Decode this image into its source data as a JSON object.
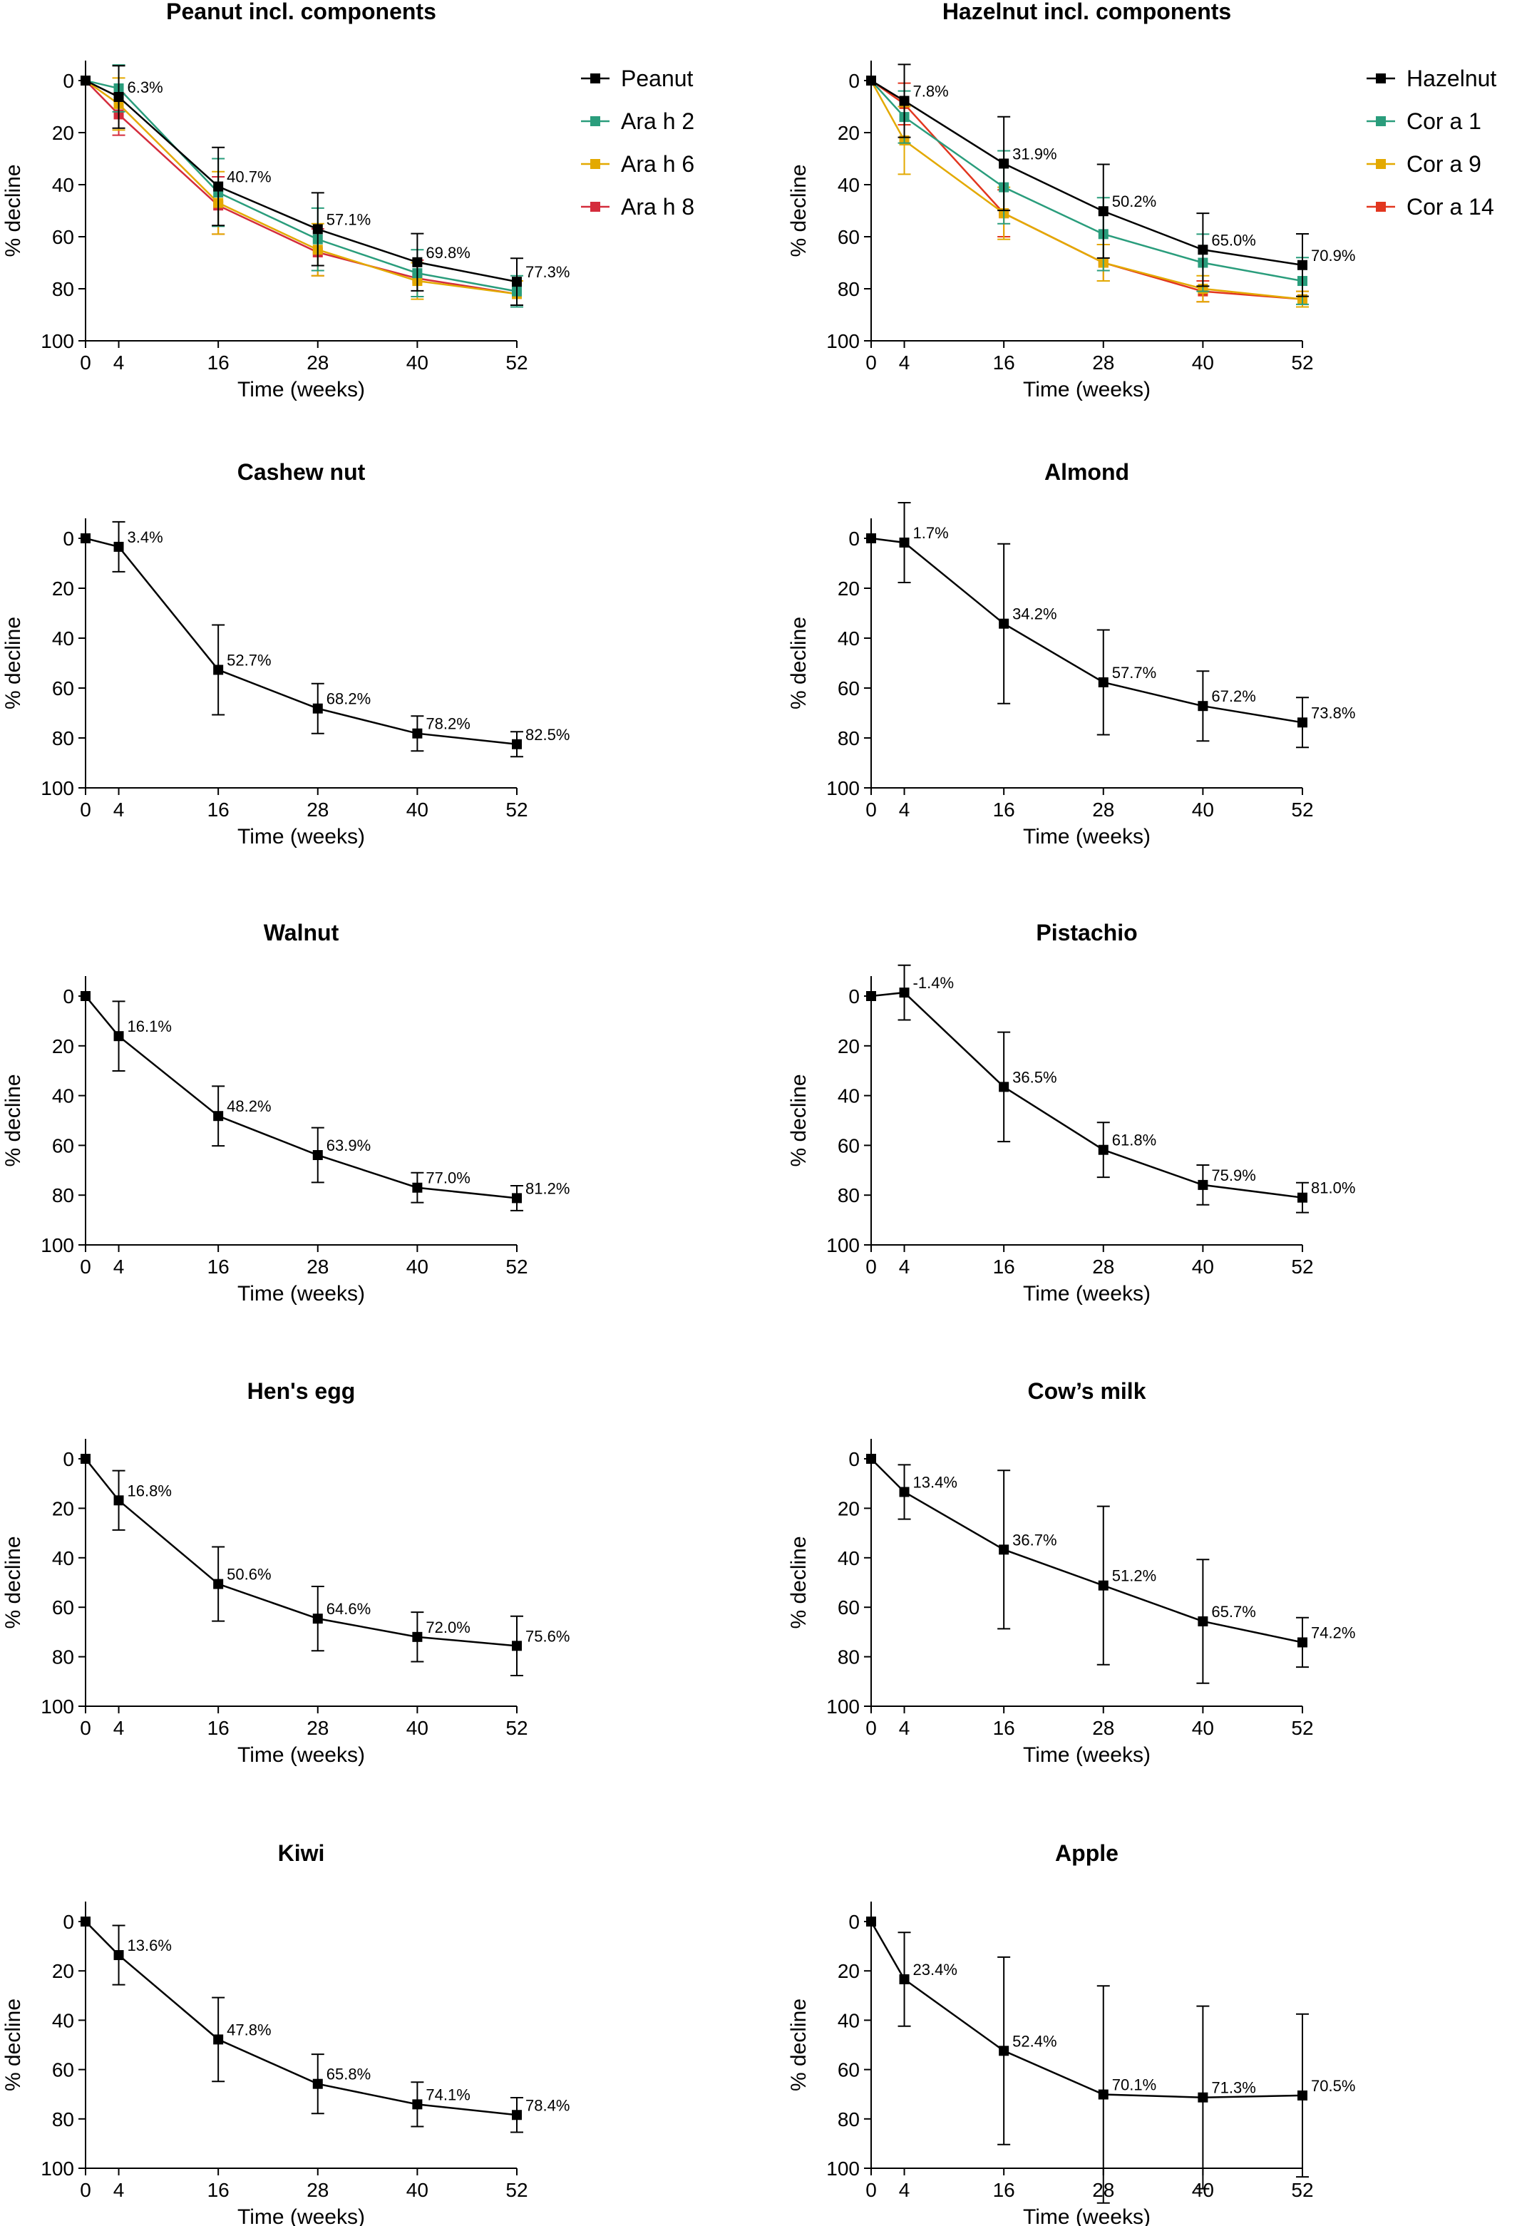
{
  "chart_data": [
    {
      "type": "line",
      "title": "Peanut incl. components",
      "xlabel": "Time (weeks)",
      "ylabel": "% decline",
      "x": [
        0,
        4,
        16,
        28,
        40,
        52
      ],
      "xlim": [
        0,
        52
      ],
      "ylim": [
        0,
        100
      ],
      "y_inverted": true,
      "legend": "right",
      "series": [
        {
          "name": "Peanut",
          "color": "#000000",
          "values": [
            0,
            6.3,
            40.7,
            57.1,
            69.8,
            77.3
          ],
          "err": [
            0,
            12,
            15,
            14,
            11,
            9
          ],
          "labels": [
            "",
            "6.3%",
            "40.7%",
            "57.1%",
            "69.8%",
            "77.3%"
          ]
        },
        {
          "name": "Ara h 2",
          "color": "#2a9d7c",
          "values": [
            0,
            3,
            43,
            61,
            74,
            81
          ],
          "err": [
            0,
            9,
            13,
            12,
            9,
            6
          ],
          "labels": []
        },
        {
          "name": "Ara h 6",
          "color": "#e3a900",
          "values": [
            0,
            9,
            47,
            65,
            77,
            82
          ],
          "err": [
            0,
            10,
            12,
            10,
            7,
            5
          ],
          "labels": []
        },
        {
          "name": "Ara h 8",
          "color": "#d42c3c",
          "values": [
            0,
            13,
            48,
            66,
            76,
            82
          ],
          "err": [
            0,
            8,
            11,
            9,
            7,
            5
          ],
          "labels": []
        }
      ]
    },
    {
      "type": "line",
      "title": "Hazelnut incl. components",
      "xlabel": "Time (weeks)",
      "ylabel": "% decline",
      "x": [
        0,
        4,
        16,
        28,
        40,
        52
      ],
      "xlim": [
        0,
        52
      ],
      "ylim": [
        0,
        100
      ],
      "y_inverted": true,
      "legend": "right",
      "series": [
        {
          "name": "Hazelnut",
          "color": "#000000",
          "values": [
            0,
            7.8,
            31.9,
            50.2,
            65.0,
            70.9
          ],
          "err": [
            0,
            14,
            18,
            18,
            14,
            12
          ],
          "labels": [
            "",
            "7.8%",
            "31.9%",
            "50.2%",
            "65.0%",
            "70.9%"
          ]
        },
        {
          "name": "Cor a 1",
          "color": "#2a9d7c",
          "values": [
            0,
            14,
            41,
            59,
            70,
            77
          ],
          "err": [
            0,
            10,
            14,
            14,
            11,
            9
          ],
          "labels": []
        },
        {
          "name": "Cor a 9",
          "color": "#e3a900",
          "values": [
            0,
            23,
            51,
            70,
            80,
            84
          ],
          "err": [
            0,
            13,
            10,
            7,
            5,
            3
          ],
          "labels": []
        },
        {
          "name": "Cor a 14",
          "color": "#e2361f",
          "values": [
            0,
            9,
            51,
            70,
            81,
            84
          ],
          "err": [
            0,
            8,
            9,
            7,
            4,
            3
          ],
          "labels": []
        }
      ]
    },
    {
      "type": "line",
      "title": "Cashew nut",
      "xlabel": "Time (weeks)",
      "ylabel": "% decline",
      "x": [
        0,
        4,
        16,
        28,
        40,
        52
      ],
      "xlim": [
        0,
        52
      ],
      "ylim": [
        0,
        100
      ],
      "y_inverted": true,
      "series": [
        {
          "color": "#000000",
          "values": [
            0,
            3.4,
            52.7,
            68.2,
            78.2,
            82.5
          ],
          "err": [
            0,
            10,
            18,
            10,
            7,
            5
          ],
          "labels": [
            "",
            "3.4%",
            "52.7%",
            "68.2%",
            "78.2%",
            "82.5%"
          ]
        }
      ]
    },
    {
      "type": "line",
      "title": "Almond",
      "xlabel": "Time (weeks)",
      "ylabel": "% decline",
      "x": [
        0,
        4,
        16,
        28,
        40,
        52
      ],
      "xlim": [
        0,
        52
      ],
      "ylim": [
        0,
        100
      ],
      "y_inverted": true,
      "series": [
        {
          "color": "#000000",
          "values": [
            0,
            1.7,
            34.2,
            57.7,
            67.2,
            73.8
          ],
          "err": [
            0,
            16,
            32,
            21,
            14,
            10
          ],
          "labels": [
            "",
            "1.7%",
            "34.2%",
            "57.7%",
            "67.2%",
            "73.8%"
          ]
        }
      ]
    },
    {
      "type": "line",
      "title": "Walnut",
      "xlabel": "Time (weeks)",
      "ylabel": "% decline",
      "x": [
        0,
        4,
        16,
        28,
        40,
        52
      ],
      "xlim": [
        0,
        52
      ],
      "ylim": [
        0,
        100
      ],
      "y_inverted": true,
      "series": [
        {
          "color": "#000000",
          "values": [
            0,
            16.1,
            48.2,
            63.9,
            77.0,
            81.2
          ],
          "err": [
            0,
            14,
            12,
            11,
            6,
            5
          ],
          "labels": [
            "",
            "16.1%",
            "48.2%",
            "63.9%",
            "77.0%",
            "81.2%"
          ]
        }
      ]
    },
    {
      "type": "line",
      "title": "Pistachio",
      "xlabel": "Time (weeks)",
      "ylabel": "% decline",
      "x": [
        0,
        4,
        16,
        28,
        40,
        52
      ],
      "xlim": [
        0,
        52
      ],
      "ylim": [
        0,
        100
      ],
      "y_inverted": true,
      "series": [
        {
          "color": "#000000",
          "values": [
            0,
            -1.4,
            36.5,
            61.8,
            75.9,
            81.0
          ],
          "err": [
            0,
            11,
            22,
            11,
            8,
            6
          ],
          "labels": [
            "",
            "-1.4%",
            "36.5%",
            "61.8%",
            "75.9%",
            "81.0%"
          ]
        }
      ]
    },
    {
      "type": "line",
      "title": "Hen's egg",
      "xlabel": "Time (weeks)",
      "ylabel": "% decline",
      "x": [
        0,
        4,
        16,
        28,
        40,
        52
      ],
      "xlim": [
        0,
        52
      ],
      "ylim": [
        0,
        100
      ],
      "y_inverted": true,
      "series": [
        {
          "color": "#000000",
          "values": [
            0,
            16.8,
            50.6,
            64.6,
            72.0,
            75.6
          ],
          "err": [
            0,
            12,
            15,
            13,
            10,
            12
          ],
          "labels": [
            "",
            "16.8%",
            "50.6%",
            "64.6%",
            "72.0%",
            "75.6%"
          ]
        }
      ]
    },
    {
      "type": "line",
      "title": "Cow’s milk",
      "xlabel": "Time (weeks)",
      "ylabel": "% decline",
      "x": [
        0,
        4,
        16,
        28,
        40,
        52
      ],
      "xlim": [
        0,
        52
      ],
      "ylim": [
        0,
        100
      ],
      "y_inverted": true,
      "series": [
        {
          "color": "#000000",
          "values": [
            0,
            13.4,
            36.7,
            51.2,
            65.7,
            74.2
          ],
          "err": [
            0,
            11,
            32,
            32,
            25,
            10
          ],
          "labels": [
            "",
            "13.4%",
            "36.7%",
            "51.2%",
            "65.7%",
            "74.2%"
          ]
        }
      ]
    },
    {
      "type": "line",
      "title": "Kiwi",
      "xlabel": "Time (weeks)",
      "ylabel": "% decline",
      "x": [
        0,
        4,
        16,
        28,
        40,
        52
      ],
      "xlim": [
        0,
        52
      ],
      "ylim": [
        0,
        100
      ],
      "y_inverted": true,
      "series": [
        {
          "color": "#000000",
          "values": [
            0,
            13.6,
            47.8,
            65.8,
            74.1,
            78.4
          ],
          "err": [
            0,
            12,
            17,
            12,
            9,
            7
          ],
          "labels": [
            "",
            "13.6%",
            "47.8%",
            "65.8%",
            "74.1%",
            "78.4%"
          ]
        }
      ]
    },
    {
      "type": "line",
      "title": "Apple",
      "xlabel": "Time (weeks)",
      "ylabel": "% decline",
      "x": [
        0,
        4,
        16,
        28,
        40,
        52
      ],
      "xlim": [
        0,
        52
      ],
      "ylim": [
        0,
        100
      ],
      "y_inverted": true,
      "series": [
        {
          "color": "#000000",
          "values": [
            0,
            23.4,
            52.4,
            70.1,
            71.3,
            70.5
          ],
          "err": [
            0,
            19,
            38,
            44,
            37,
            33
          ],
          "labels": [
            "",
            "23.4%",
            "52.4%",
            "70.1%",
            "71.3%",
            "70.5%"
          ]
        }
      ]
    }
  ]
}
